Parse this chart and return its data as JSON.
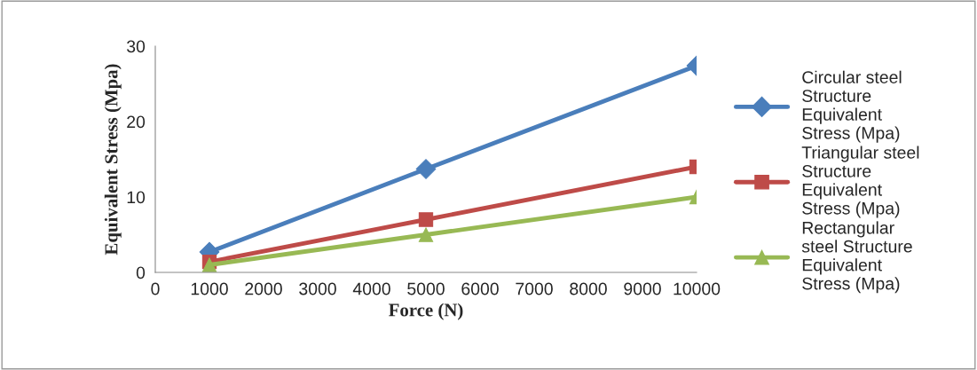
{
  "chart_data": {
    "type": "line",
    "xlabel": "Force (N)",
    "ylabel": "Equivalent Stress (Mpa)",
    "x": [
      1000,
      5000,
      10000
    ],
    "series": [
      {
        "name": "Circular steel Structure Equivalent Stress (Mpa)",
        "color": "#4a7ebb",
        "marker": "diamond",
        "values": [
          2.7,
          13.7,
          27.4
        ]
      },
      {
        "name": "Triangular steel Structure Equivalent Stress (Mpa)",
        "color": "#be4b48",
        "marker": "square",
        "values": [
          1.4,
          7,
          14
        ]
      },
      {
        "name": "Rectangular steel Structure Equivalent Stress (Mpa)",
        "color": "#98b954",
        "marker": "triangle",
        "values": [
          1,
          5,
          10
        ]
      }
    ],
    "xlim": [
      0,
      10000
    ],
    "xticks": [
      0,
      1000,
      2000,
      3000,
      4000,
      5000,
      6000,
      7000,
      8000,
      9000,
      10000
    ],
    "ylim": [
      0,
      30
    ],
    "yticks": [
      0,
      10,
      20,
      30
    ],
    "grid": false,
    "legend": "right",
    "line_style": "solid"
  }
}
